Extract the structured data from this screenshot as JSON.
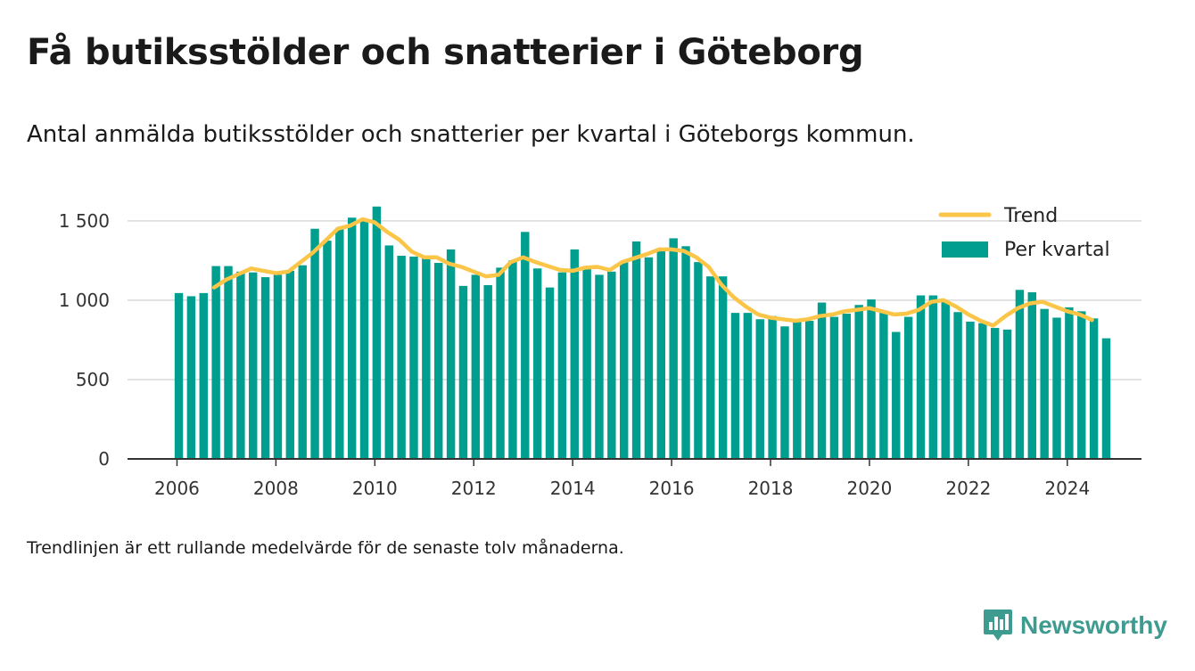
{
  "title": "Få butiksstölder och snatterier i Göteborg",
  "subtitle": "Antal anmälda butiksstölder och snatterier per kvartal i Göteborgs kommun.",
  "footnote": "Trendlinjen är ett rullande medelvärde för de senaste tolv månaderna.",
  "brand": {
    "name": "Newsworthy",
    "icon": "newsworthy-chart-icon",
    "color": "#3e9b8f"
  },
  "colors": {
    "bar": "#009e8e",
    "trend": "#fbc548",
    "grid": "#d9d9d9",
    "axis": "#333333"
  },
  "chart_data": {
    "type": "bar",
    "x_start": 2006,
    "x_step": 0.25,
    "xlim": [
      2005,
      2025.5
    ],
    "ylim": [
      0,
      1600
    ],
    "x_ticks": [
      2006,
      2008,
      2010,
      2012,
      2014,
      2016,
      2018,
      2020,
      2022,
      2024
    ],
    "y_ticks": [
      0,
      500,
      1000,
      1500
    ],
    "y_tick_labels": [
      "0",
      "500",
      "1 000",
      "1 500"
    ],
    "grid": true,
    "legend_position": "top-right",
    "series": [
      {
        "name": "Per kvartal",
        "kind": "bar",
        "values": [
          1045,
          1025,
          1045,
          1215,
          1215,
          1180,
          1175,
          1145,
          1160,
          1185,
          1220,
          1450,
          1375,
          1455,
          1520,
          1500,
          1590,
          1345,
          1280,
          1275,
          1280,
          1235,
          1320,
          1090,
          1160,
          1095,
          1205,
          1250,
          1430,
          1200,
          1080,
          1175,
          1320,
          1200,
          1160,
          1180,
          1240,
          1370,
          1270,
          1310,
          1390,
          1340,
          1240,
          1150,
          1150,
          920,
          920,
          880,
          900,
          835,
          870,
          870,
          985,
          895,
          915,
          970,
          1005,
          930,
          800,
          895,
          1030,
          1030,
          995,
          925,
          865,
          855,
          825,
          815,
          1065,
          1050,
          945,
          890,
          955,
          930,
          885,
          760
        ]
      },
      {
        "name": "Trend",
        "kind": "line",
        "x_start": 2006.75,
        "values": [
          1080,
          1130,
          1165,
          1200,
          1185,
          1170,
          1180,
          1240,
          1300,
          1375,
          1450,
          1470,
          1510,
          1490,
          1430,
          1380,
          1305,
          1270,
          1270,
          1230,
          1210,
          1180,
          1150,
          1160,
          1240,
          1270,
          1240,
          1215,
          1190,
          1185,
          1205,
          1210,
          1190,
          1240,
          1265,
          1290,
          1320,
          1320,
          1310,
          1270,
          1210,
          1100,
          1020,
          960,
          910,
          890,
          880,
          870,
          880,
          900,
          910,
          930,
          940,
          950,
          930,
          910,
          915,
          940,
          990,
          1000,
          960,
          910,
          870,
          840,
          900,
          950,
          980,
          990,
          960,
          930,
          910,
          875
        ]
      }
    ]
  }
}
